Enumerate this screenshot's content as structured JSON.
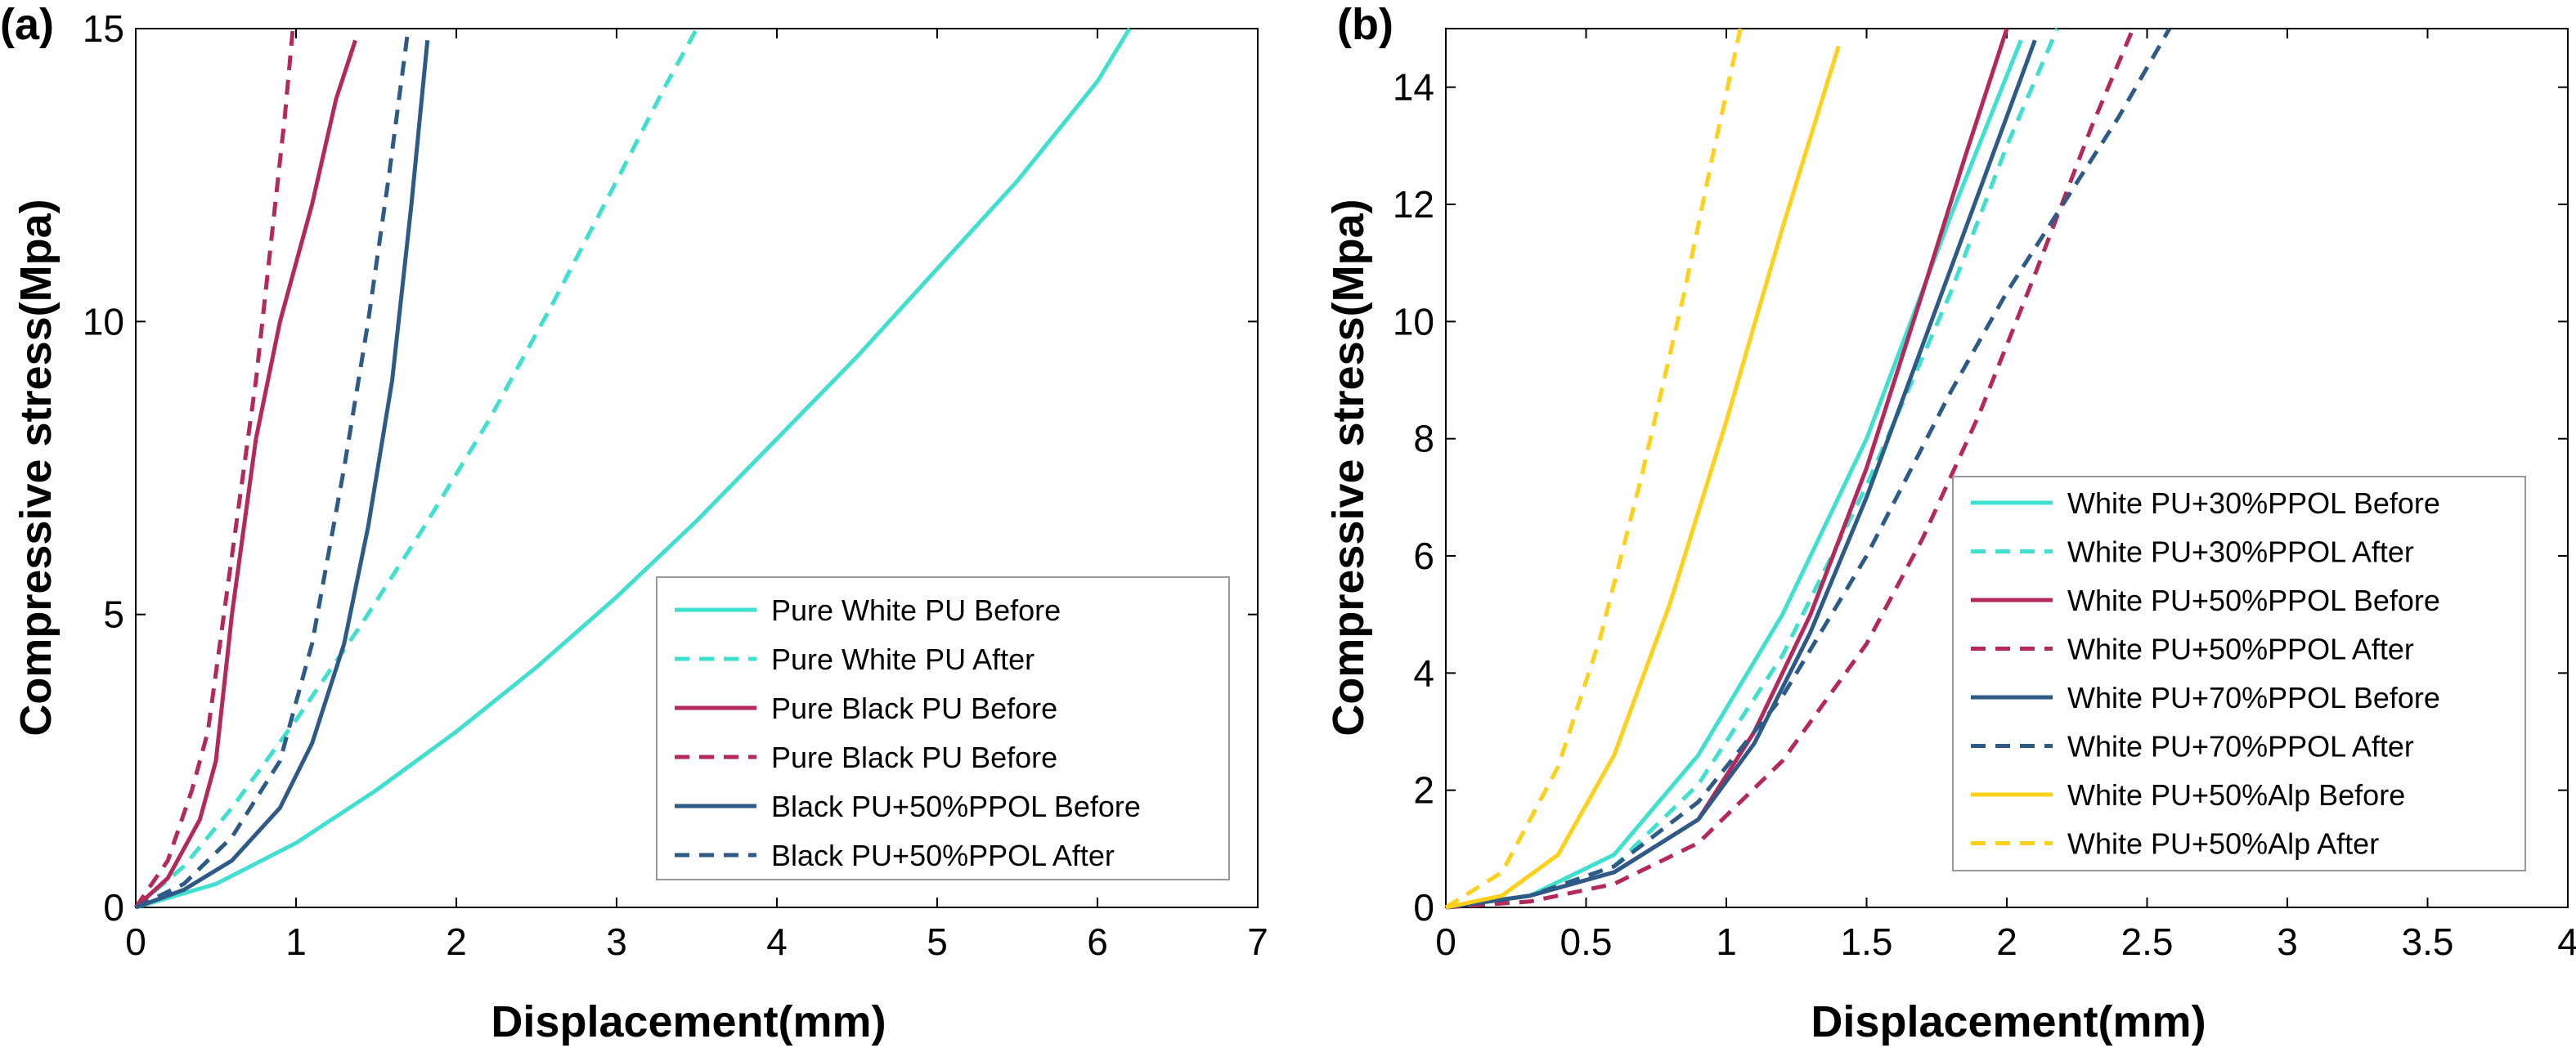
{
  "chart_data": [
    {
      "panel": "(a)",
      "type": "line",
      "xlabel": "Displacement(mm)",
      "ylabel": "Compressive stress(Mpa)",
      "xlim": [
        0,
        7
      ],
      "ylim": [
        0,
        15
      ],
      "xticks": [
        0,
        1,
        2,
        3,
        4,
        5,
        6,
        7
      ],
      "yticks": [
        0,
        5,
        10,
        15
      ],
      "grid": false,
      "legend_position": "bottom-right",
      "series": [
        {
          "name": "Pure White PU Before",
          "color": "#40E0D0",
          "dash": false,
          "x": [
            0,
            0.5,
            1,
            1.5,
            2,
            2.5,
            3,
            3.5,
            4,
            4.5,
            5,
            5.5,
            6,
            6.2
          ],
          "y": [
            0,
            0.4,
            1.1,
            2.0,
            3.0,
            4.1,
            5.3,
            6.6,
            8.0,
            9.4,
            10.9,
            12.4,
            14.1,
            15
          ]
        },
        {
          "name": "Pure White PU After",
          "color": "#40E0D0",
          "dash": true,
          "x": [
            0,
            0.3,
            0.6,
            1,
            1.4,
            1.8,
            2.2,
            2.6,
            3.0,
            3.3,
            3.5
          ],
          "y": [
            0,
            0.7,
            1.7,
            3.2,
            4.8,
            6.5,
            8.3,
            10.3,
            12.4,
            14.0,
            15
          ]
        },
        {
          "name": "Pure Black PU Before",
          "color": "#B5285A",
          "dash": false,
          "x": [
            0,
            0.2,
            0.4,
            0.5,
            0.6,
            0.75,
            0.9,
            1.1,
            1.25,
            1.37
          ],
          "y": [
            0,
            0.5,
            1.5,
            2.5,
            5.0,
            8.0,
            10.0,
            12.0,
            13.8,
            14.8
          ]
        },
        {
          "name": "Pure Black PU Before",
          "color": "#B5285A",
          "dash": true,
          "x": [
            0,
            0.2,
            0.35,
            0.45,
            0.55,
            0.65,
            0.75,
            0.85,
            0.93,
            0.98
          ],
          "y": [
            0,
            0.8,
            2.0,
            3.0,
            5.0,
            7.0,
            9.0,
            11.5,
            13.5,
            15
          ]
        },
        {
          "name": "Black PU+50%PPOL Before",
          "color": "#2E5A87",
          "dash": false,
          "x": [
            0,
            0.3,
            0.6,
            0.9,
            1.1,
            1.3,
            1.45,
            1.6,
            1.72,
            1.82
          ],
          "y": [
            0,
            0.3,
            0.8,
            1.7,
            2.8,
            4.5,
            6.5,
            9.0,
            12.0,
            14.8
          ]
        },
        {
          "name": "Black PU+50%PPOL After",
          "color": "#2E5A87",
          "dash": true,
          "x": [
            0,
            0.3,
            0.6,
            0.9,
            1.1,
            1.3,
            1.45,
            1.58,
            1.7
          ],
          "y": [
            0,
            0.4,
            1.2,
            2.5,
            4.5,
            7.5,
            10.0,
            12.5,
            15
          ]
        }
      ]
    },
    {
      "panel": "(b)",
      "type": "line",
      "xlabel": "Displacement(mm)",
      "ylabel": "Compressive stress(Mpa)",
      "xlim": [
        0,
        4
      ],
      "ylim": [
        0,
        15
      ],
      "xticks": [
        "0",
        "0.5",
        "1",
        "1.5",
        "2",
        "2.5",
        "3",
        "3.5",
        "4"
      ],
      "yticks": [
        0,
        2,
        4,
        6,
        8,
        10,
        12,
        14
      ],
      "grid": false,
      "legend_position": "center-right",
      "series": [
        {
          "name": "White PU+30%PPOL Before",
          "color": "#40E0D0",
          "dash": false,
          "x": [
            0,
            0.3,
            0.6,
            0.9,
            1.2,
            1.5,
            1.8,
            2.05
          ],
          "y": [
            0,
            0.2,
            0.9,
            2.6,
            5.0,
            8.0,
            11.8,
            14.8
          ]
        },
        {
          "name": "White PU+30%PPOL After",
          "color": "#40E0D0",
          "dash": true,
          "x": [
            0,
            0.3,
            0.6,
            0.9,
            1.2,
            1.5,
            1.8,
            2.0,
            2.18
          ],
          "y": [
            0,
            0.2,
            0.7,
            2.1,
            4.3,
            7.2,
            10.5,
            13.0,
            15
          ]
        },
        {
          "name": "White PU+50%PPOL Before",
          "color": "#B5285A",
          "dash": false,
          "x": [
            0,
            0.3,
            0.6,
            0.9,
            1.1,
            1.3,
            1.5,
            1.7,
            1.85,
            2.0
          ],
          "y": [
            0,
            0.2,
            0.6,
            1.5,
            3.0,
            5.0,
            7.5,
            10.5,
            12.8,
            15
          ]
        },
        {
          "name": "White PU+50%PPOL After",
          "color": "#B5285A",
          "dash": true,
          "x": [
            0,
            0.3,
            0.6,
            0.9,
            1.2,
            1.5,
            1.7,
            1.9,
            2.1,
            2.3,
            2.45
          ],
          "y": [
            0,
            0.1,
            0.4,
            1.1,
            2.5,
            4.5,
            6.3,
            8.4,
            10.8,
            13.3,
            15
          ]
        },
        {
          "name": "White PU+70%PPOL Before",
          "color": "#2E5A87",
          "dash": false,
          "x": [
            0,
            0.3,
            0.6,
            0.9,
            1.1,
            1.3,
            1.5,
            1.7,
            1.9,
            2.1
          ],
          "y": [
            0,
            0.2,
            0.6,
            1.5,
            2.8,
            4.7,
            7.0,
            9.6,
            12.2,
            14.8
          ]
        },
        {
          "name": "White PU+70%PPOL After",
          "color": "#2E5A87",
          "dash": true,
          "x": [
            0,
            0.3,
            0.6,
            0.9,
            1.2,
            1.5,
            1.8,
            2.0,
            2.2,
            2.4,
            2.58
          ],
          "y": [
            0,
            0.2,
            0.7,
            1.8,
            3.6,
            6.0,
            8.8,
            10.5,
            12.0,
            13.5,
            15
          ]
        },
        {
          "name": "White PU+50%Alp Before",
          "color": "#FFD11A",
          "dash": false,
          "x": [
            0,
            0.2,
            0.4,
            0.6,
            0.8,
            1.0,
            1.2,
            1.4
          ],
          "y": [
            0,
            0.2,
            0.9,
            2.6,
            5.2,
            8.3,
            11.6,
            14.7
          ]
        },
        {
          "name": "White PU+50%Alp After",
          "color": "#FFD11A",
          "dash": true,
          "x": [
            0,
            0.2,
            0.4,
            0.55,
            0.7,
            0.85,
            0.95,
            1.05
          ],
          "y": [
            0,
            0.6,
            2.4,
            4.6,
            7.4,
            10.5,
            12.8,
            15
          ]
        }
      ]
    }
  ]
}
